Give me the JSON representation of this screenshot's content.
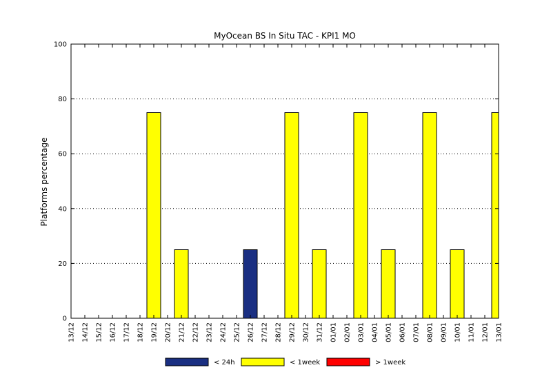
{
  "chart_data": {
    "type": "bar",
    "title": "MyOcean  BS In Situ TAC - KPI1  MO",
    "xlabel": "",
    "ylabel": "Platforms percentage",
    "ylim": [
      0,
      100
    ],
    "yticks": [
      0,
      20,
      40,
      60,
      80,
      100
    ],
    "grid": "horizontal dotted",
    "legend_position": "bottom",
    "categories": [
      "13/12",
      "14/12",
      "15/12",
      "16/12",
      "17/12",
      "18/12",
      "19/12",
      "20/12",
      "21/12",
      "22/12",
      "23/12",
      "24/12",
      "25/12",
      "26/12",
      "27/12",
      "28/12",
      "29/12",
      "30/12",
      "31/12",
      "01/01",
      "02/01",
      "03/01",
      "04/01",
      "05/01",
      "06/01",
      "07/01",
      "08/01",
      "09/01",
      "10/01",
      "11/01",
      "12/01",
      "13/01"
    ],
    "series": [
      {
        "name": "< 24h",
        "color": "#1a2f82",
        "values": [
          0,
          0,
          0,
          0,
          0,
          0,
          0,
          0,
          0,
          0,
          0,
          0,
          0,
          25,
          0,
          0,
          0,
          0,
          0,
          0,
          0,
          0,
          0,
          0,
          0,
          0,
          0,
          0,
          0,
          0,
          0,
          0
        ]
      },
      {
        "name": "< 1week",
        "color": "#ffff00",
        "values": [
          0,
          0,
          0,
          0,
          0,
          0,
          75,
          0,
          25,
          0,
          0,
          0,
          0,
          0,
          0,
          0,
          75,
          0,
          25,
          0,
          0,
          75,
          0,
          25,
          0,
          0,
          75,
          0,
          25,
          0,
          0,
          75
        ]
      },
      {
        "name": "> 1week",
        "color": "#ff0000",
        "values": [
          0,
          0,
          0,
          0,
          0,
          0,
          0,
          0,
          0,
          0,
          0,
          0,
          0,
          0,
          0,
          0,
          0,
          0,
          0,
          0,
          0,
          0,
          0,
          0,
          0,
          0,
          0,
          0,
          0,
          0,
          0,
          0
        ]
      }
    ]
  }
}
